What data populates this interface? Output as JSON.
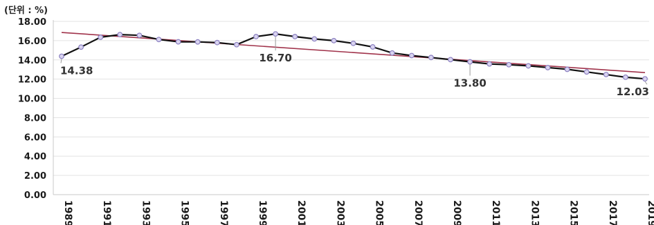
{
  "chart_data": {
    "type": "line",
    "unit_label": "(단위 : %)",
    "x": [
      1989,
      1990,
      1991,
      1992,
      1993,
      1994,
      1995,
      1996,
      1997,
      1998,
      1999,
      2000,
      2001,
      2002,
      2003,
      2004,
      2005,
      2006,
      2007,
      2008,
      2009,
      2010,
      2011,
      2012,
      2013,
      2014,
      2015,
      2016,
      2017,
      2018,
      2019
    ],
    "x_tick_labels": [
      "1989",
      "1991",
      "1993",
      "1995",
      "1997",
      "1999",
      "2001",
      "2003",
      "2005",
      "2007",
      "2009",
      "2011",
      "2013",
      "2015",
      "2017",
      "2019"
    ],
    "series": [
      {
        "values": [
          14.38,
          15.33,
          16.35,
          16.63,
          16.55,
          16.12,
          15.88,
          15.87,
          15.8,
          15.58,
          16.42,
          16.7,
          16.42,
          16.18,
          16.0,
          15.72,
          15.35,
          14.72,
          14.45,
          14.25,
          14.03,
          13.8,
          13.58,
          13.5,
          13.38,
          13.2,
          13.02,
          12.75,
          12.48,
          12.2,
          12.03
        ],
        "color": "#111111",
        "marker_color": "#8a7fc0"
      }
    ],
    "trendline": {
      "start": 16.85,
      "end": 12.68,
      "color": "#a0324a"
    },
    "ylim": [
      0,
      18
    ],
    "y_ticks": [
      "0.00",
      "2.00",
      "4.00",
      "6.00",
      "8.00",
      "10.00",
      "12.00",
      "14.00",
      "16.00",
      "18.00"
    ],
    "grid": true,
    "annotations": [
      {
        "year": 1989,
        "value": 14.38,
        "label": "14.38"
      },
      {
        "year": 2000,
        "value": 16.7,
        "label": "16.70"
      },
      {
        "year": 2010,
        "value": 13.8,
        "label": "13.80"
      },
      {
        "year": 2019,
        "value": 12.03,
        "label": "12.03"
      }
    ]
  }
}
